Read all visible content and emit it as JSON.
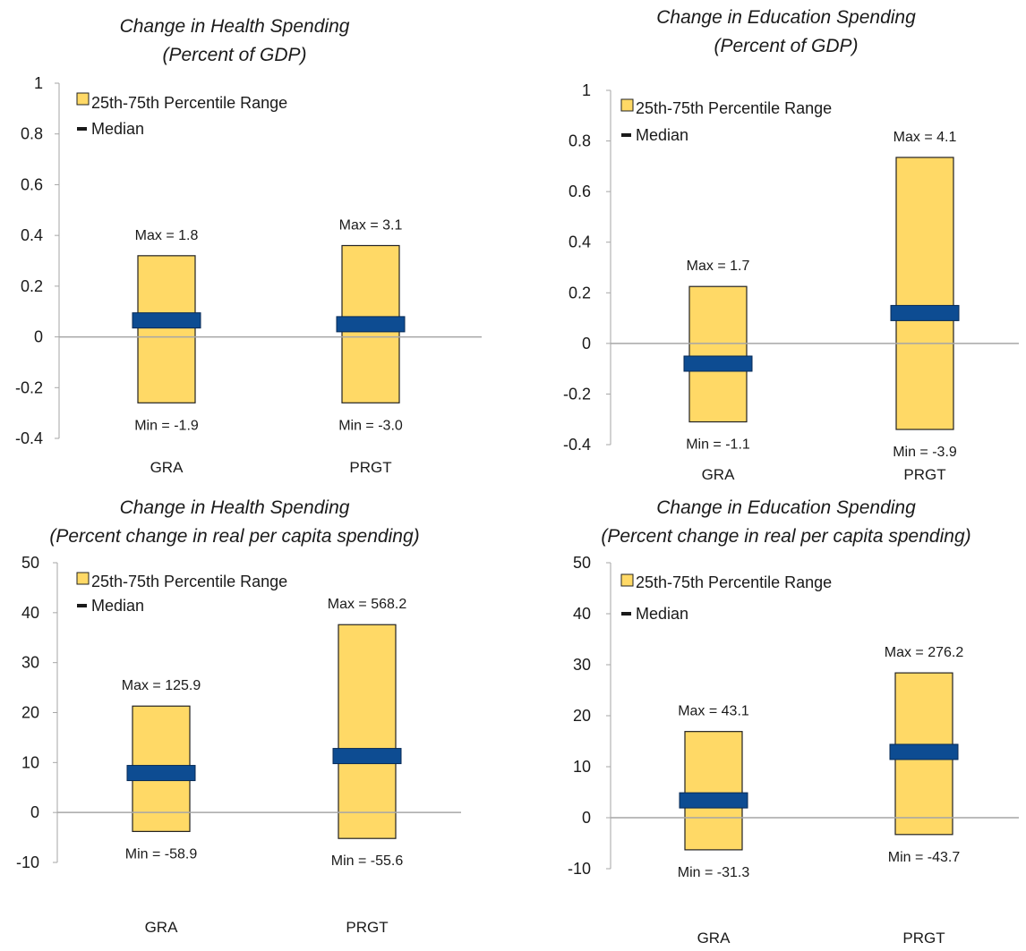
{
  "colors": {
    "range_fill": "#FFD966",
    "range_stroke": "#222222",
    "median_fill": "#0D4C92",
    "median_stroke": "#072A55",
    "axis": "#A6A6A6",
    "zero_line": "#A6A6A6"
  },
  "chart_data": [
    {
      "type": "bar",
      "title": "Change in Health Spending",
      "subtitle": "(Percent of GDP)",
      "categories": [
        "GRA",
        "PRGT"
      ],
      "ylim": [
        -0.4,
        1
      ],
      "yticks": [
        "1",
        "0.8",
        "0.6",
        "0.4",
        "0.2",
        "0",
        "-0.2",
        "-0.4"
      ],
      "ytick_values": [
        1,
        0.8,
        0.6,
        0.4,
        0.2,
        0,
        -0.2,
        -0.4
      ],
      "legend": {
        "range": "25th-75th Percentile Range",
        "median": "Median",
        "placement": "top-left"
      },
      "series": [
        {
          "category": "GRA",
          "p25": -0.26,
          "p75": 0.32,
          "median": 0.065,
          "max_label": "Max = 1.8",
          "min_label": "Min =  -1.9"
        },
        {
          "category": "PRGT",
          "p25": -0.26,
          "p75": 0.36,
          "median": 0.05,
          "max_label": "Max = 3.1",
          "min_label": "Min =  -3.0"
        }
      ]
    },
    {
      "type": "bar",
      "title": "Change in Education Spending",
      "subtitle": "(Percent of GDP)",
      "categories": [
        "GRA",
        "PRGT"
      ],
      "ylim": [
        -0.4,
        1
      ],
      "yticks": [
        "1",
        "0.8",
        "0.6",
        "0.4",
        "0.2",
        "0",
        "-0.2",
        "-0.4"
      ],
      "ytick_values": [
        1,
        0.8,
        0.6,
        0.4,
        0.2,
        0,
        -0.2,
        -0.4
      ],
      "legend": {
        "range": "25th-75th Percentile Range",
        "median": "Median",
        "placement": "top-left"
      },
      "series": [
        {
          "category": "GRA",
          "p25": -0.31,
          "p75": 0.225,
          "median": -0.08,
          "max_label": "Max = 1.7",
          "min_label": "Min = -1.1"
        },
        {
          "category": "PRGT",
          "p25": -0.34,
          "p75": 0.735,
          "median": 0.12,
          "max_label": "Max = 4.1",
          "min_label": "Min = -3.9"
        }
      ]
    },
    {
      "type": "bar",
      "title": "Change in Health Spending",
      "subtitle": "(Percent change in real per capita spending)",
      "categories": [
        "GRA",
        "PRGT"
      ],
      "ylim": [
        -10,
        50
      ],
      "yticks": [
        "50",
        "40",
        "30",
        "20",
        "10",
        "0",
        "-10"
      ],
      "ytick_values": [
        50,
        40,
        30,
        20,
        10,
        0,
        -10
      ],
      "legend": {
        "range": "25th-75th Percentile Range",
        "median": "Median",
        "placement": "top-left"
      },
      "series": [
        {
          "category": "GRA",
          "p25": -3.8,
          "p75": 21.3,
          "median": 7.9,
          "max_label": "Max =  125.9",
          "min_label": "Min =  -58.9"
        },
        {
          "category": "PRGT",
          "p25": -5.2,
          "p75": 37.6,
          "median": 11.3,
          "max_label": "Max =  568.2",
          "min_label": "Min =  -55.6"
        }
      ]
    },
    {
      "type": "bar",
      "title": "Change in Education Spending",
      "subtitle": "(Percent change in real per capita spending)",
      "categories": [
        "GRA",
        "PRGT"
      ],
      "ylim": [
        -10,
        50
      ],
      "yticks": [
        "50",
        "40",
        "30",
        "20",
        "10",
        "0",
        "-10"
      ],
      "ytick_values": [
        50,
        40,
        30,
        20,
        10,
        0,
        -10
      ],
      "legend": {
        "range": "25th-75th Percentile Range",
        "median": "Median",
        "placement": "top-left"
      },
      "series": [
        {
          "category": "GRA",
          "p25": -6.3,
          "p75": 16.9,
          "median": 3.4,
          "max_label": "Max =  43.1",
          "min_label": "Min =  -31.3"
        },
        {
          "category": "PRGT",
          "p25": -3.3,
          "p75": 28.4,
          "median": 12.9,
          "max_label": "Max =  276.2",
          "min_label": "Min =  -43.7"
        }
      ]
    }
  ]
}
